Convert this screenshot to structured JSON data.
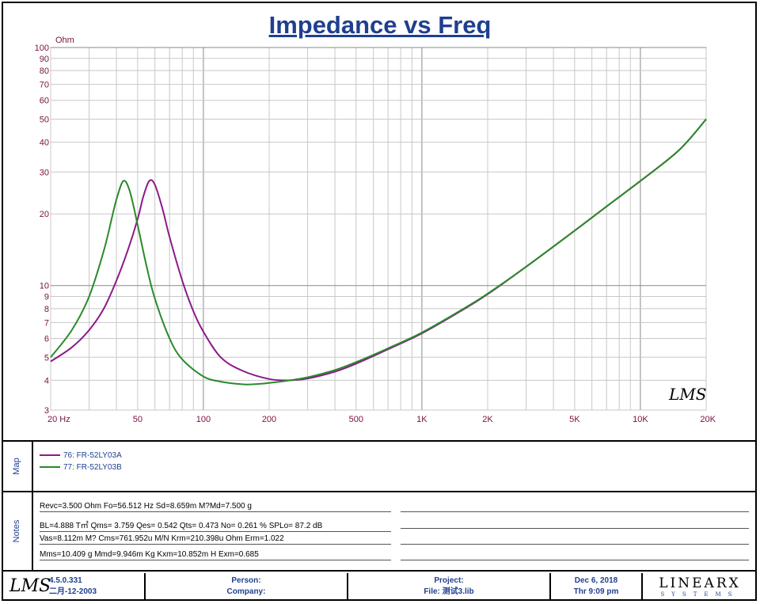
{
  "chart_data": {
    "type": "line",
    "title": "Impedance vs Freq",
    "ylabel": "Ohm",
    "x_scale": "log",
    "y_scale": "log",
    "xlim": [
      20,
      20000
    ],
    "ylim": [
      3,
      100
    ],
    "x_ticks": [
      {
        "value": 20,
        "label": "20  Hz"
      },
      {
        "value": 50,
        "label": "50"
      },
      {
        "value": 100,
        "label": "100"
      },
      {
        "value": 200,
        "label": "200"
      },
      {
        "value": 500,
        "label": "500"
      },
      {
        "value": 1000,
        "label": "1K"
      },
      {
        "value": 2000,
        "label": "2K"
      },
      {
        "value": 5000,
        "label": "5K"
      },
      {
        "value": 10000,
        "label": "10K"
      },
      {
        "value": 20000,
        "label": "20K"
      }
    ],
    "y_ticks": [
      3,
      4,
      5,
      6,
      7,
      8,
      9,
      10,
      20,
      30,
      40,
      50,
      60,
      70,
      80,
      90,
      100
    ],
    "grid": true,
    "series": [
      {
        "name": "76: FR-52LY03A",
        "color": "#8b1a8b",
        "x": [
          20,
          25,
          30,
          35,
          40,
          45,
          50,
          53,
          56.5,
          60,
          65,
          70,
          80,
          90,
          100,
          120,
          150,
          200,
          250,
          300,
          400,
          500,
          700,
          1000,
          1500,
          2000,
          3000,
          5000,
          7000,
          10000,
          15000,
          20000
        ],
        "y": [
          4.8,
          5.5,
          6.5,
          8.0,
          10.5,
          14.0,
          19.0,
          23.5,
          27.5,
          26.5,
          21.0,
          16.0,
          10.5,
          7.8,
          6.4,
          5.0,
          4.4,
          4.05,
          4.0,
          4.07,
          4.35,
          4.7,
          5.4,
          6.3,
          7.8,
          9.2,
          12.0,
          17.0,
          21.5,
          27.5,
          37.0,
          50.0
        ]
      },
      {
        "name": "77: FR-52LY03B",
        "color": "#2a8a2a",
        "x": [
          20,
          25,
          30,
          35,
          38,
          40,
          43,
          46,
          50,
          55,
          60,
          70,
          80,
          100,
          120,
          150,
          170,
          200,
          250,
          300,
          400,
          500,
          700,
          1000,
          1500,
          2000,
          3000,
          5000,
          7000,
          10000,
          15000,
          20000
        ],
        "y": [
          5.0,
          6.5,
          9.0,
          14.0,
          19.0,
          23.0,
          27.5,
          25.0,
          18.0,
          12.0,
          8.8,
          6.0,
          4.9,
          4.15,
          3.95,
          3.85,
          3.85,
          3.9,
          4.0,
          4.12,
          4.42,
          4.77,
          5.45,
          6.35,
          7.85,
          9.25,
          12.0,
          17.0,
          21.5,
          27.5,
          37.0,
          50.0
        ]
      }
    ]
  },
  "logo_text": "LMS",
  "map": {
    "label": "Map",
    "entries": [
      {
        "text": "76: FR-52LY03A",
        "color": "#8b1a8b"
      },
      {
        "text": "77: FR-52LY03B",
        "color": "#2a8a2a"
      }
    ]
  },
  "notes": {
    "label": "Notes",
    "lines": [
      "Revc=3.500 Ohm  Fo=56.512 Hz  Sd=8.659m M?Md=7.500 g",
      "BL=4.888 T㎡  Qms= 3.759  Qes= 0.542  Qts= 0.473  No= 0.261 %  SPLo= 87.2 dB",
      "Vas=8.112m M? Cms=761.952u M/N  Krm=210.398u Ohm  Erm=1.022",
      "Mms=10.409 g  Mmd=9.946m Kg  Kxm=10.852m H  Exm=0.685"
    ]
  },
  "footer": {
    "logo": "LMS",
    "version": "4.5.0.331",
    "build_date": "二月-12-2003",
    "person_label": "Person:",
    "company_label": "Company:",
    "project_label": "Project:",
    "file_label": "File: 测试3.lib",
    "date": "Dec  6, 2018",
    "time": "Thr  9:09 pm",
    "brand": "LINEARX",
    "brand_sub": "SYSTEMS"
  }
}
